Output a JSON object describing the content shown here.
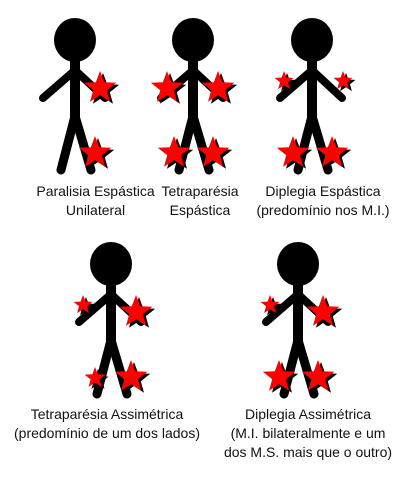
{
  "colors": {
    "figure": "#000000",
    "star": "#ff0000",
    "star_shadow": "#000000"
  },
  "figures": [
    {
      "id": "paralisia-espastica-unilateral",
      "caption": [
        "Paralisia Espástica",
        "Unilateral"
      ],
      "stars": [
        "right-hand",
        "right-foot"
      ]
    },
    {
      "id": "tetraparesia-espastica",
      "caption": [
        "Tetraparésia",
        "Espástica"
      ],
      "stars": [
        "left-hand",
        "right-hand",
        "left-foot",
        "right-foot"
      ]
    },
    {
      "id": "diplegia-espastica",
      "caption": [
        "Diplegia Espástica",
        "(predomínio nos M.I.)"
      ],
      "stars": [
        "left-hand-small",
        "right-hand-small",
        "left-foot",
        "right-foot"
      ]
    },
    {
      "id": "tetraparesia-assimetrica",
      "caption": [
        "Tetraparésia Assimétrica",
        "(predomínio de um dos lados)"
      ],
      "stars": [
        "left-hand-small",
        "right-hand",
        "left-foot-small",
        "right-foot"
      ]
    },
    {
      "id": "diplegia-assimetrica",
      "caption": [
        "Diplegia Assimétrica",
        "(M.I. bilateralmente e um",
        "dos M.S. mais que o outro)"
      ],
      "stars": [
        "left-hand-small",
        "right-hand",
        "left-foot",
        "right-foot"
      ]
    }
  ]
}
